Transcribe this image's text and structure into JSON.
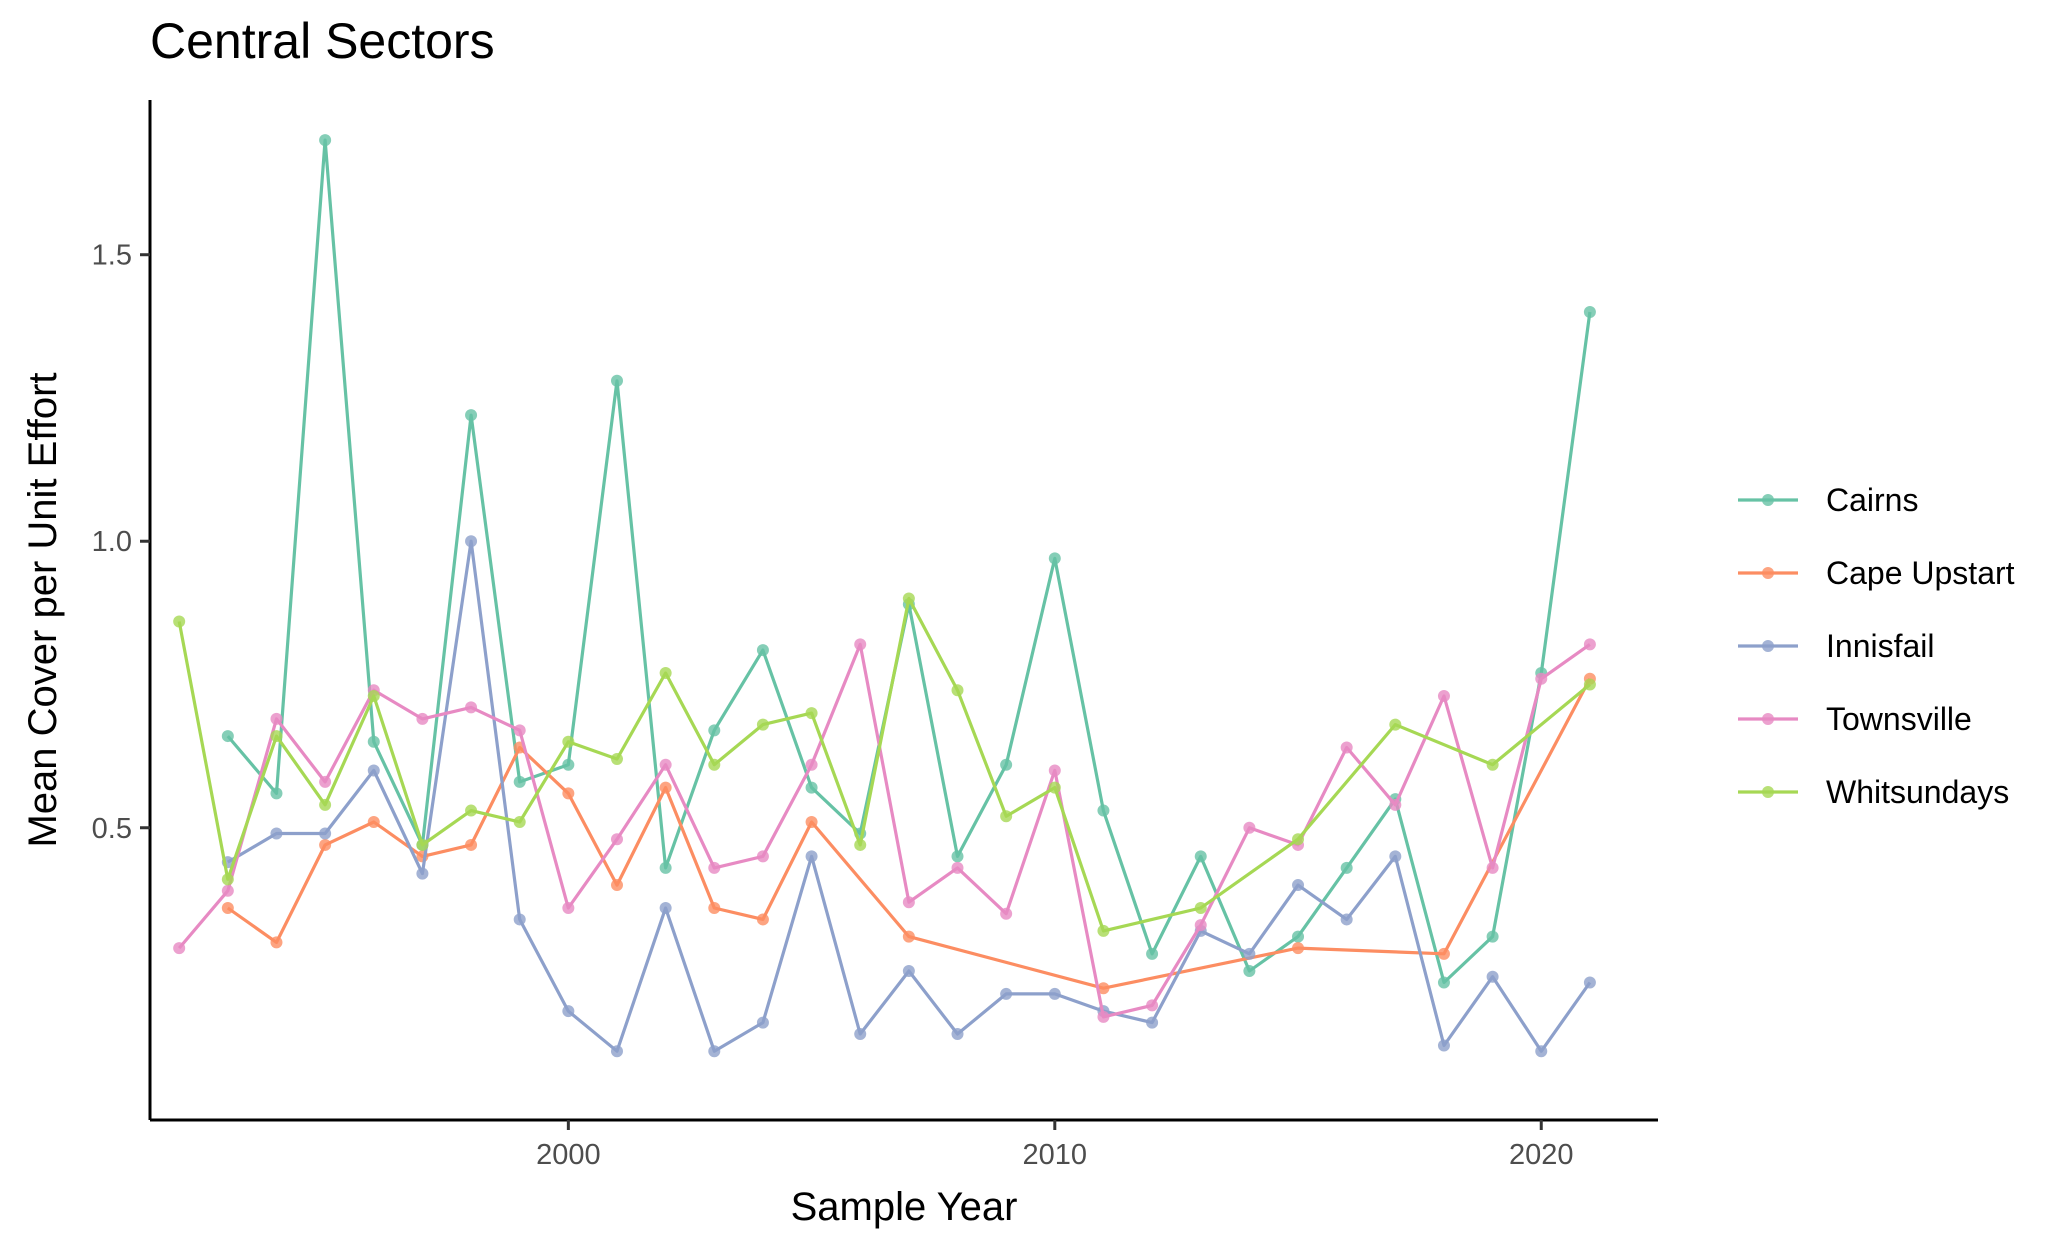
{
  "chart_data": {
    "type": "line",
    "title": "Central Sectors",
    "xlabel": "Sample Year",
    "ylabel": "Mean Cover per Unit Effort",
    "xlim": [
      1991.4,
      2022.4
    ],
    "ylim": [
      -0.01,
      1.77
    ],
    "x_ticks": [
      2000,
      2010,
      2020
    ],
    "x_tick_labels": [
      "2000",
      "2010",
      "2020"
    ],
    "y_ticks": [
      0.5,
      1.0,
      1.5
    ],
    "y_tick_labels": [
      "0.5",
      "1.0",
      "1.5"
    ],
    "grid": false,
    "legend_position": "right",
    "series": [
      {
        "name": "Cairns",
        "color": "#66c2a5",
        "points": [
          [
            1993,
            0.66
          ],
          [
            1994,
            0.56
          ],
          [
            1995,
            1.7
          ],
          [
            1996,
            0.65
          ],
          [
            1997,
            0.47
          ],
          [
            1998,
            1.22
          ],
          [
            1999,
            0.58
          ],
          [
            2000,
            0.61
          ],
          [
            2001,
            1.28
          ],
          [
            2002,
            0.43
          ],
          [
            2003,
            0.67
          ],
          [
            2004,
            0.81
          ],
          [
            2005,
            0.57
          ],
          [
            2006,
            0.49
          ],
          [
            2007,
            0.89
          ],
          [
            2008,
            0.45
          ],
          [
            2009,
            0.61
          ],
          [
            2010,
            0.97
          ],
          [
            2011,
            0.53
          ],
          [
            2012,
            0.28
          ],
          [
            2013,
            0.45
          ],
          [
            2014,
            0.25
          ],
          [
            2015,
            0.31
          ],
          [
            2016,
            0.43
          ],
          [
            2017,
            0.55
          ],
          [
            2018,
            0.23
          ],
          [
            2019,
            0.31
          ],
          [
            2020,
            0.77
          ],
          [
            2021,
            1.4
          ]
        ]
      },
      {
        "name": "Cape Upstart",
        "color": "#fc8d62",
        "points": [
          [
            1993,
            0.36
          ],
          [
            1994,
            0.3
          ],
          [
            1995,
            0.47
          ],
          [
            1996,
            0.51
          ],
          [
            1997,
            0.45
          ],
          [
            1998,
            0.47
          ],
          [
            1999,
            0.64
          ],
          [
            2000,
            0.56
          ],
          [
            2001,
            0.4
          ],
          [
            2002,
            0.57
          ],
          [
            2003,
            0.36
          ],
          [
            2004,
            0.34
          ],
          [
            2005,
            0.51
          ],
          [
            2007,
            0.31
          ],
          [
            2011,
            0.22
          ],
          [
            2015,
            0.29
          ],
          [
            2018,
            0.28
          ],
          [
            2021,
            0.76
          ]
        ]
      },
      {
        "name": "Innisfail",
        "color": "#8da0cb",
        "points": [
          [
            1993,
            0.44
          ],
          [
            1994,
            0.49
          ],
          [
            1995,
            0.49
          ],
          [
            1996,
            0.6
          ],
          [
            1997,
            0.42
          ],
          [
            1998,
            1.0
          ],
          [
            1999,
            0.34
          ],
          [
            2000,
            0.18
          ],
          [
            2001,
            0.11
          ],
          [
            2002,
            0.36
          ],
          [
            2003,
            0.11
          ],
          [
            2004,
            0.16
          ],
          [
            2005,
            0.45
          ],
          [
            2006,
            0.14
          ],
          [
            2007,
            0.25
          ],
          [
            2008,
            0.14
          ],
          [
            2009,
            0.21
          ],
          [
            2010,
            0.21
          ],
          [
            2011,
            0.18
          ],
          [
            2012,
            0.16
          ],
          [
            2013,
            0.32
          ],
          [
            2014,
            0.28
          ],
          [
            2015,
            0.4
          ],
          [
            2016,
            0.34
          ],
          [
            2017,
            0.45
          ],
          [
            2018,
            0.12
          ],
          [
            2019,
            0.24
          ],
          [
            2020,
            0.11
          ],
          [
            2021,
            0.23
          ]
        ]
      },
      {
        "name": "Townsville",
        "color": "#e78ac3",
        "points": [
          [
            1992,
            0.29
          ],
          [
            1993,
            0.39
          ],
          [
            1994,
            0.69
          ],
          [
            1995,
            0.58
          ],
          [
            1996,
            0.74
          ],
          [
            1997,
            0.69
          ],
          [
            1998,
            0.71
          ],
          [
            1999,
            0.67
          ],
          [
            2000,
            0.36
          ],
          [
            2001,
            0.48
          ],
          [
            2002,
            0.61
          ],
          [
            2003,
            0.43
          ],
          [
            2004,
            0.45
          ],
          [
            2005,
            0.61
          ],
          [
            2006,
            0.82
          ],
          [
            2007,
            0.37
          ],
          [
            2008,
            0.43
          ],
          [
            2009,
            0.35
          ],
          [
            2010,
            0.6
          ],
          [
            2011,
            0.17
          ],
          [
            2012,
            0.19
          ],
          [
            2013,
            0.33
          ],
          [
            2014,
            0.5
          ],
          [
            2015,
            0.47
          ],
          [
            2016,
            0.64
          ],
          [
            2017,
            0.54
          ],
          [
            2018,
            0.73
          ],
          [
            2019,
            0.43
          ],
          [
            2020,
            0.76
          ],
          [
            2021,
            0.82
          ]
        ]
      },
      {
        "name": "Whitsundays",
        "color": "#a6d854",
        "points": [
          [
            1992,
            0.86
          ],
          [
            1993,
            0.41
          ],
          [
            1994,
            0.66
          ],
          [
            1995,
            0.54
          ],
          [
            1996,
            0.73
          ],
          [
            1997,
            0.47
          ],
          [
            1998,
            0.53
          ],
          [
            1999,
            0.51
          ],
          [
            2000,
            0.65
          ],
          [
            2001,
            0.62
          ],
          [
            2002,
            0.77
          ],
          [
            2003,
            0.61
          ],
          [
            2004,
            0.68
          ],
          [
            2005,
            0.7
          ],
          [
            2006,
            0.47
          ],
          [
            2007,
            0.9
          ],
          [
            2008,
            0.74
          ],
          [
            2009,
            0.52
          ],
          [
            2010,
            0.57
          ],
          [
            2011,
            0.32
          ],
          [
            2013,
            0.36
          ],
          [
            2015,
            0.48
          ],
          [
            2017,
            0.68
          ],
          [
            2019,
            0.61
          ],
          [
            2021,
            0.75
          ]
        ]
      }
    ]
  }
}
